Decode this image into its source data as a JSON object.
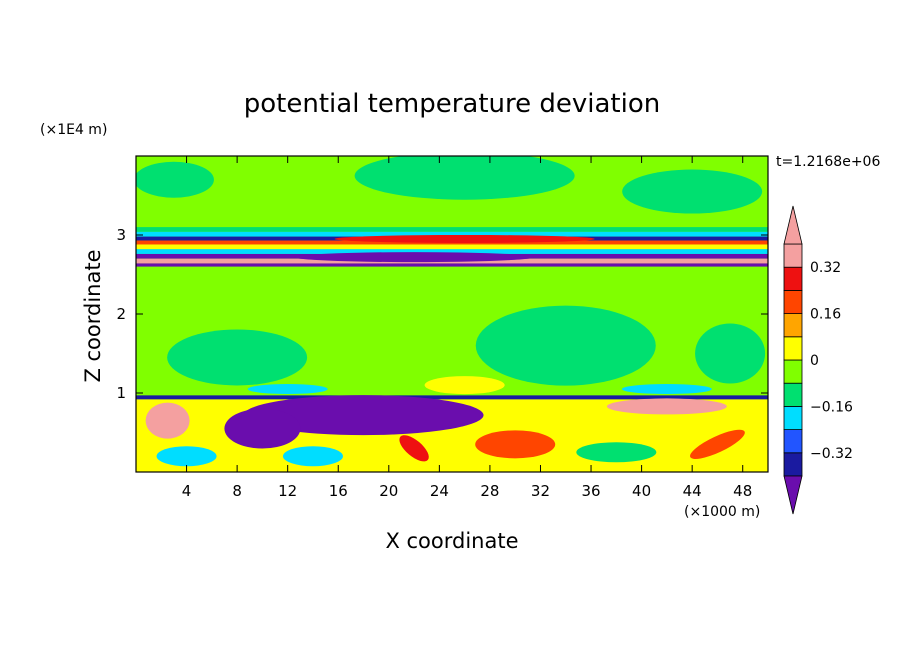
{
  "chart_data": {
    "type": "heatmap",
    "title": "potential temperature deviation",
    "xlabel": "X coordinate",
    "ylabel": "Z coordinate",
    "x_unit": "(×1000 m)",
    "y_unit": "(×1E4 m)",
    "time_label": "t=1.2168e+06",
    "xlim": [
      0,
      50
    ],
    "ylim": [
      0,
      4
    ],
    "x_ticks": [
      4,
      8,
      12,
      16,
      20,
      24,
      28,
      32,
      36,
      40,
      44,
      48
    ],
    "x_tick_labels": [
      "4",
      "8",
      "12",
      "16",
      "20",
      "24",
      "28",
      "32",
      "36",
      "40",
      "44",
      "48"
    ],
    "y_ticks": [
      1,
      2,
      3
    ],
    "y_tick_labels": [
      "1",
      "2",
      "3"
    ],
    "colorbar": {
      "levels": [
        -0.4,
        -0.32,
        -0.24,
        -0.16,
        -0.08,
        0,
        0.08,
        0.16,
        0.24,
        0.32,
        0.4
      ],
      "colors": [
        "#6a0dad",
        "#1a1aa0",
        "#2255ff",
        "#00ddff",
        "#00e070",
        "#80ff00",
        "#ffff00",
        "#ffa500",
        "#ff4500",
        "#ee1111",
        "#f4a0a0"
      ],
      "label_values": [
        0.32,
        0.16,
        0,
        -0.16,
        -0.32
      ],
      "labels": [
        "0.32",
        "0.16",
        "0",
        "−0.16",
        "−0.32"
      ]
    },
    "grid": false,
    "legend_position": "right"
  }
}
